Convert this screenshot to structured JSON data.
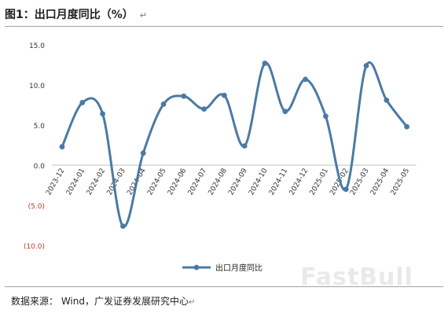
{
  "figure": {
    "title": "图1：出口月度同比（%）",
    "source": "数据来源：  Wind，广发证券发展研究中心",
    "paragraph_mark": "↵",
    "watermark": "FastBull"
  },
  "chart_data": {
    "type": "line",
    "title": "",
    "xlabel": "",
    "ylabel": "",
    "categories": [
      "2023-12",
      "2024-01",
      "2024-02",
      "2024-03",
      "2024-04",
      "2024-05",
      "2024-06",
      "2024-07",
      "2024-08",
      "2024-09",
      "2024-10",
      "2024-11",
      "2024-12",
      "2025-01",
      "2025-02",
      "2025-03",
      "2025-04",
      "2025-05"
    ],
    "series": [
      {
        "name": "出口月度同比",
        "values": [
          2.3,
          7.8,
          6.4,
          -7.6,
          1.5,
          7.6,
          8.6,
          7.0,
          8.7,
          2.4,
          12.7,
          6.7,
          10.7,
          6.1,
          -3.0,
          12.4,
          8.1,
          4.8
        ]
      }
    ],
    "ylim": [
      -10,
      15
    ],
    "yticks": [
      15,
      10,
      5,
      0,
      -5,
      -10
    ],
    "ytick_labels": [
      "15.0",
      "10.0",
      "5.0",
      "0.0",
      "(5.0)",
      "(10.0)"
    ],
    "legend_position": "bottom",
    "grid": false,
    "colors": {
      "line": "#4a7aa4",
      "negative_tick": "#c0392b",
      "axis": "#bfbfbf"
    },
    "smooth": true
  }
}
